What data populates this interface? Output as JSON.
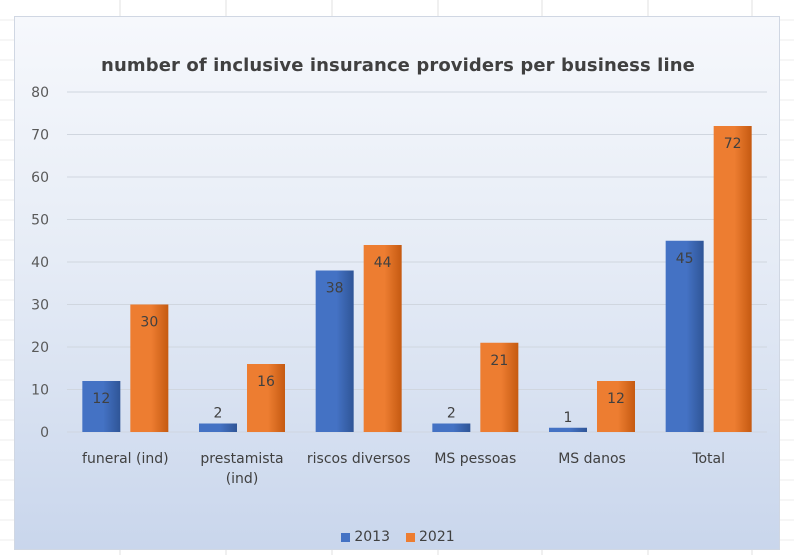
{
  "chart_data": {
    "type": "bar",
    "title": "number of inclusive insurance providers per business line",
    "categories": [
      [
        "funeral (ind)"
      ],
      [
        "prestamista",
        "(ind)"
      ],
      [
        "riscos diversos"
      ],
      [
        "MS pessoas"
      ],
      [
        "MS danos"
      ],
      [
        "Total"
      ]
    ],
    "series": [
      {
        "name": "2013",
        "color": "#4472c4",
        "values": [
          12,
          2,
          38,
          2,
          1,
          45
        ]
      },
      {
        "name": "2021",
        "color": "#ed7d31",
        "values": [
          30,
          16,
          44,
          21,
          12,
          72
        ]
      }
    ],
    "ylim": [
      0,
      80
    ],
    "yticks": [
      0,
      10,
      20,
      30,
      40,
      50,
      60,
      70,
      80
    ],
    "grid": true,
    "legend_position": "bottom",
    "data_labels": true
  }
}
